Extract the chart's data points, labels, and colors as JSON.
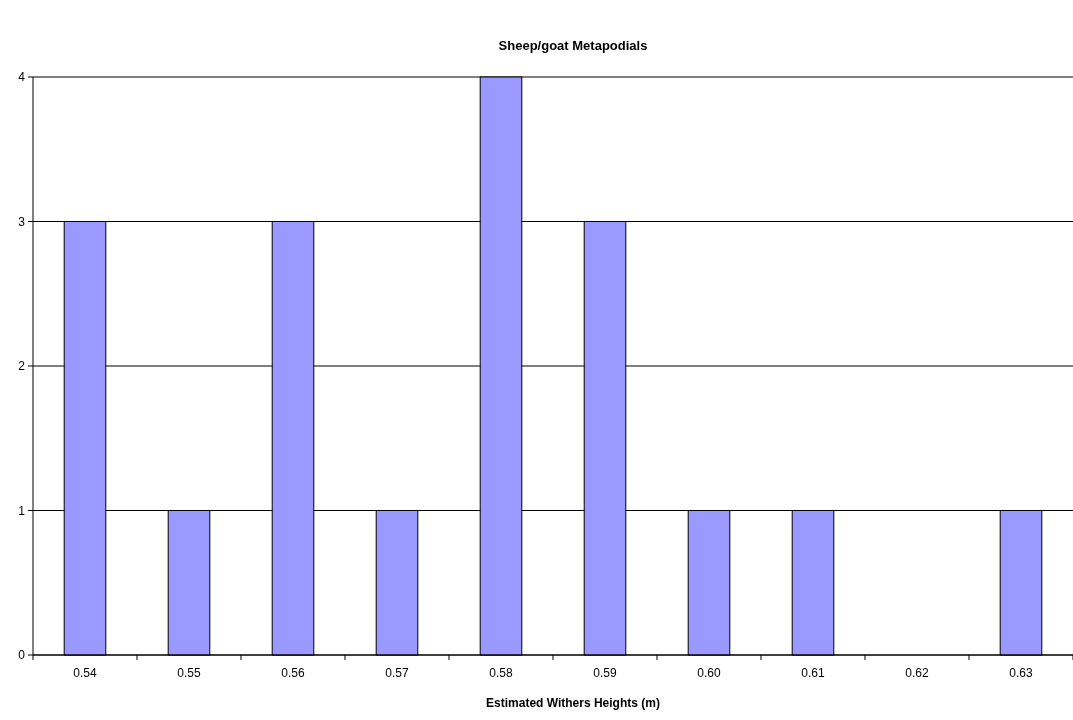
{
  "chart_data": {
    "type": "bar",
    "title": "Sheep/goat Metapodials",
    "xlabel": "Estimated Withers Heights (m)",
    "categories": [
      "0.54",
      "0.55",
      "0.56",
      "0.57",
      "0.58",
      "0.59",
      "0.60",
      "0.61",
      "0.62",
      "0.63"
    ],
    "values": [
      3,
      1,
      3,
      1,
      4,
      3,
      1,
      1,
      0,
      1
    ],
    "color": "#9999ff",
    "ylim": [
      0,
      4
    ],
    "yticks": [
      0,
      1,
      2,
      3,
      4
    ],
    "grid": "y"
  }
}
